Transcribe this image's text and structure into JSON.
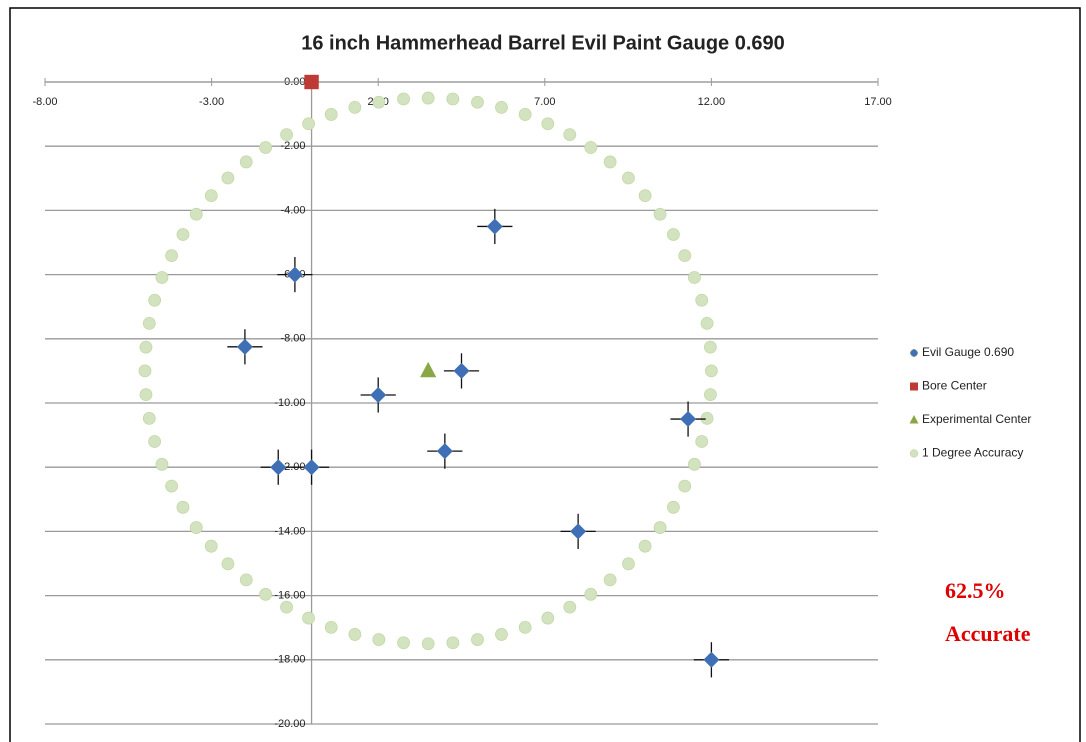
{
  "chart_data": {
    "type": "scatter",
    "title": "16 inch Hammerhead Barrel Evil Paint Gauge 0.690",
    "xlim": [
      -8,
      17
    ],
    "xticks": [
      {
        "value": -8,
        "label": "-8.00"
      },
      {
        "value": -3,
        "label": "-3.00"
      },
      {
        "value": 2,
        "label": "2.00"
      },
      {
        "value": 7,
        "label": "7.00"
      },
      {
        "value": 12,
        "label": "12.00"
      },
      {
        "value": 17,
        "label": "17.00"
      }
    ],
    "ylim": [
      -20,
      0
    ],
    "yticks": [
      {
        "value": 0,
        "label": "0.00"
      },
      {
        "value": -2,
        "label": "-2.00"
      },
      {
        "value": -4,
        "label": "-4.00"
      },
      {
        "value": -6,
        "label": "-6.00"
      },
      {
        "value": -8,
        "label": "-8.00"
      },
      {
        "value": -10,
        "label": "-10.00"
      },
      {
        "value": -12,
        "label": "-12.00"
      },
      {
        "value": -14,
        "label": "-14.00"
      },
      {
        "value": -16,
        "label": "-16.00"
      },
      {
        "value": -18,
        "label": "-18.00"
      },
      {
        "value": -20,
        "label": "-20.00"
      }
    ],
    "grid": true,
    "legend": "right",
    "series": [
      {
        "name": "Evil Gauge 0.690",
        "color": "#3f6fb5",
        "marker": "diamond",
        "x": [
          5.5,
          -0.5,
          -2,
          2,
          4.5,
          4,
          -1,
          0,
          11.3,
          8,
          12
        ],
        "values": [
          -4.5,
          -6,
          -8.25,
          -9.75,
          -9,
          -11.5,
          -12,
          -12,
          -10.5,
          -14,
          -18
        ]
      },
      {
        "name": "Bore Center",
        "color": "#be3a34",
        "marker": "square",
        "x": [
          0
        ],
        "values": [
          0
        ]
      },
      {
        "name": "Experimental Center",
        "color": "#8aa746",
        "marker": "triangle",
        "x": [
          3.5
        ],
        "values": [
          -9
        ]
      },
      {
        "name": "1 Degree Accuracy",
        "color": "#d4e3bf",
        "marker": "circle",
        "x": [
          12,
          11.97,
          11.87,
          11.71,
          11.49,
          11.2,
          10.86,
          10.46,
          10.01,
          9.51,
          8.96,
          8.38,
          7.75,
          7.09,
          6.41,
          5.7,
          4.98,
          4.24,
          3.5,
          2.76,
          2.02,
          1.3,
          0.59,
          -0.09,
          -0.75,
          -1.38,
          -1.96,
          -2.51,
          -3.01,
          -3.46,
          -3.86,
          -4.2,
          -4.49,
          -4.71,
          -4.87,
          -4.97,
          -5,
          -4.97,
          -4.87,
          -4.71,
          -4.49,
          -4.2,
          -3.86,
          -3.46,
          -3.01,
          -2.51,
          -1.96,
          -1.38,
          -0.75,
          -0.09,
          0.59,
          1.3,
          2.02,
          2.76,
          3.5,
          4.24,
          4.98,
          5.7,
          6.41,
          7.09,
          7.75,
          8.38,
          8.96,
          9.51,
          10.01,
          10.46,
          10.86,
          11.2,
          11.49,
          11.71,
          11.87,
          11.97
        ],
        "values": [
          -9,
          -8.26,
          -7.52,
          -6.8,
          -6.09,
          -5.41,
          -4.75,
          -4.12,
          -3.54,
          -2.99,
          -2.49,
          -2.04,
          -1.64,
          -1.3,
          -1.01,
          -0.79,
          -0.63,
          -0.53,
          -0.5,
          -0.53,
          -0.63,
          -0.79,
          -1.01,
          -1.3,
          -1.64,
          -2.04,
          -2.49,
          -2.99,
          -3.54,
          -4.12,
          -4.75,
          -5.41,
          -6.09,
          -6.8,
          -7.52,
          -8.26,
          -9,
          -9.74,
          -10.48,
          -11.2,
          -11.91,
          -12.59,
          -13.25,
          -13.88,
          -14.46,
          -15.01,
          -15.51,
          -15.96,
          -16.36,
          -16.7,
          -16.99,
          -17.21,
          -17.37,
          -17.47,
          -17.5,
          -17.47,
          -17.37,
          -17.21,
          -16.99,
          -16.7,
          -16.36,
          -15.96,
          -15.51,
          -15.01,
          -14.46,
          -13.88,
          -13.25,
          -12.59,
          -11.91,
          -11.2,
          -10.48,
          -9.74
        ]
      }
    ],
    "annotation_lines": [
      "62.5%",
      "Accurate"
    ]
  }
}
